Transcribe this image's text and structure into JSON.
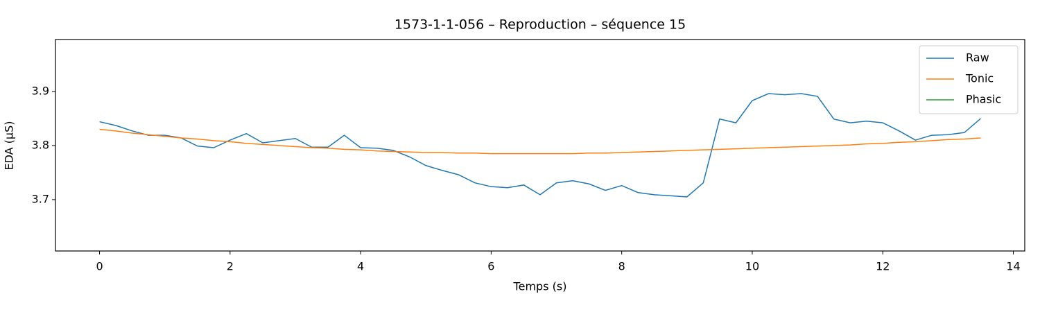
{
  "chart_data": {
    "type": "line",
    "title": "1573-1-1-056 – Reproduction – séquence 15",
    "x_label": "Temps (s)",
    "y_label": "EDA (µS)",
    "x": [
      0,
      0.25,
      0.5,
      0.75,
      1,
      1.25,
      1.5,
      1.75,
      2,
      2.25,
      2.5,
      2.75,
      3,
      3.25,
      3.5,
      3.75,
      4,
      4.25,
      4.5,
      4.75,
      5,
      5.25,
      5.5,
      5.75,
      6,
      6.25,
      6.5,
      6.75,
      7,
      7.25,
      7.5,
      7.75,
      8,
      8.25,
      8.5,
      8.75,
      9,
      9.25,
      9.5,
      9.75,
      10,
      10.25,
      10.5,
      10.75,
      11,
      11.25,
      11.5,
      11.75,
      12,
      12.25,
      12.5,
      12.75,
      13,
      13.25,
      13.5
    ],
    "series": [
      {
        "name": "Raw",
        "color": "#1f77b4",
        "values": [
          3.844,
          3.837,
          3.827,
          3.819,
          3.819,
          3.814,
          3.799,
          3.796,
          3.81,
          3.822,
          3.805,
          3.809,
          3.813,
          3.797,
          3.797,
          3.819,
          3.796,
          3.795,
          3.791,
          3.779,
          3.763,
          3.754,
          3.746,
          3.731,
          3.724,
          3.722,
          3.727,
          3.709,
          3.731,
          3.735,
          3.729,
          3.717,
          3.726,
          3.713,
          3.709,
          3.707,
          3.705,
          3.731,
          3.849,
          3.842,
          3.883,
          3.896,
          3.894,
          3.896,
          3.891,
          3.849,
          3.842,
          3.845,
          3.842,
          3.827,
          3.81,
          3.819,
          3.82,
          3.824,
          3.85
        ]
      },
      {
        "name": "Tonic",
        "color": "#ff7f0e",
        "values": [
          3.83,
          3.827,
          3.823,
          3.82,
          3.817,
          3.814,
          3.812,
          3.809,
          3.807,
          3.804,
          3.802,
          3.8,
          3.798,
          3.796,
          3.795,
          3.793,
          3.792,
          3.79,
          3.789,
          3.788,
          3.787,
          3.787,
          3.786,
          3.786,
          3.785,
          3.785,
          3.785,
          3.785,
          3.785,
          3.785,
          3.786,
          3.786,
          3.787,
          3.788,
          3.789,
          3.79,
          3.791,
          3.792,
          3.793,
          3.794,
          3.795,
          3.796,
          3.797,
          3.798,
          3.799,
          3.8,
          3.801,
          3.803,
          3.804,
          3.806,
          3.807,
          3.809,
          3.811,
          3.812,
          3.814
        ]
      },
      {
        "name": "Phasic",
        "color": "#2ca02c",
        "values": [
          null,
          null,
          null,
          null,
          null,
          null,
          null,
          null,
          null,
          null,
          null,
          null,
          null,
          null,
          null,
          null,
          null,
          null,
          null,
          null,
          null,
          null,
          null,
          null,
          null,
          null,
          null,
          null,
          null,
          null,
          null,
          null,
          null,
          null,
          null,
          null,
          null,
          null,
          null,
          null,
          null,
          null,
          null,
          null,
          null,
          null,
          null,
          null,
          null,
          null,
          null,
          null,
          null,
          null,
          null
        ]
      }
    ],
    "xlim": [
      -0.675,
      14.175
    ],
    "xticks": [
      0,
      2,
      4,
      6,
      8,
      10,
      12,
      14
    ],
    "ylim": [
      3.605,
      3.996
    ],
    "yticks": [
      3.7,
      3.8,
      3.9
    ],
    "grid": false,
    "legend": "upper right"
  }
}
